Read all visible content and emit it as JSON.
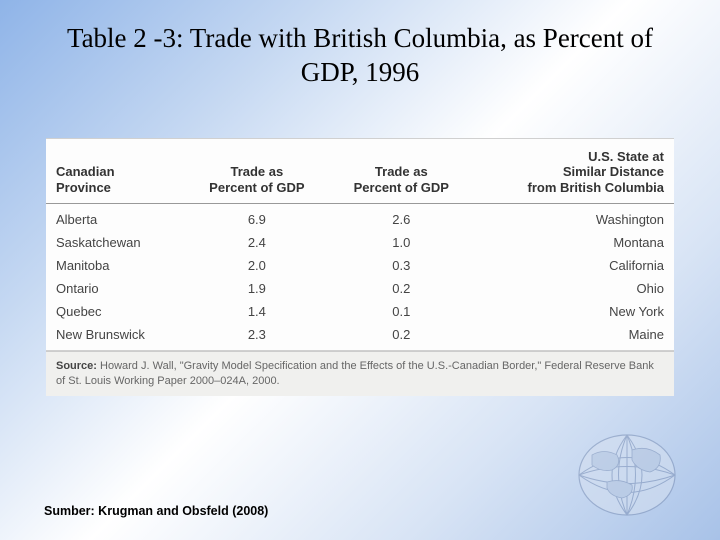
{
  "title": "Table 2 -3: Trade with British Columbia, as Percent of GDP, 1996",
  "table": {
    "columns": [
      "Canadian\nProvince",
      "Trade as\nPercent of GDP",
      "Trade as\nPercent of GDP",
      "U.S. State at\nSimilar Distance\nfrom British Columbia"
    ],
    "rows": [
      [
        "Alberta",
        "6.9",
        "2.6",
        "Washington"
      ],
      [
        "Saskatchewan",
        "2.4",
        "1.0",
        "Montana"
      ],
      [
        "Manitoba",
        "2.0",
        "0.3",
        "California"
      ],
      [
        "Ontario",
        "1.9",
        "0.2",
        "Ohio"
      ],
      [
        "Quebec",
        "1.4",
        "0.1",
        "New York"
      ],
      [
        "New Brunswick",
        "2.3",
        "0.2",
        "Maine"
      ]
    ],
    "header_fontsize": 13,
    "cell_fontsize": 13,
    "background_color": "#fdfdfd",
    "border_color": "#999999",
    "text_color": "#444444"
  },
  "source_label": "Source:",
  "source_text": " Howard J. Wall, \"Gravity Model Specification and the Effects of the U.S.-Canadian Border,\" Federal Reserve Bank of St. Louis Working Paper 2000–024A, 2000.",
  "footer": "Sumber: Krugman and Obsfeld (2008)",
  "globe": {
    "stroke": "#7a8fb5",
    "fill": "#d5e0f0"
  }
}
